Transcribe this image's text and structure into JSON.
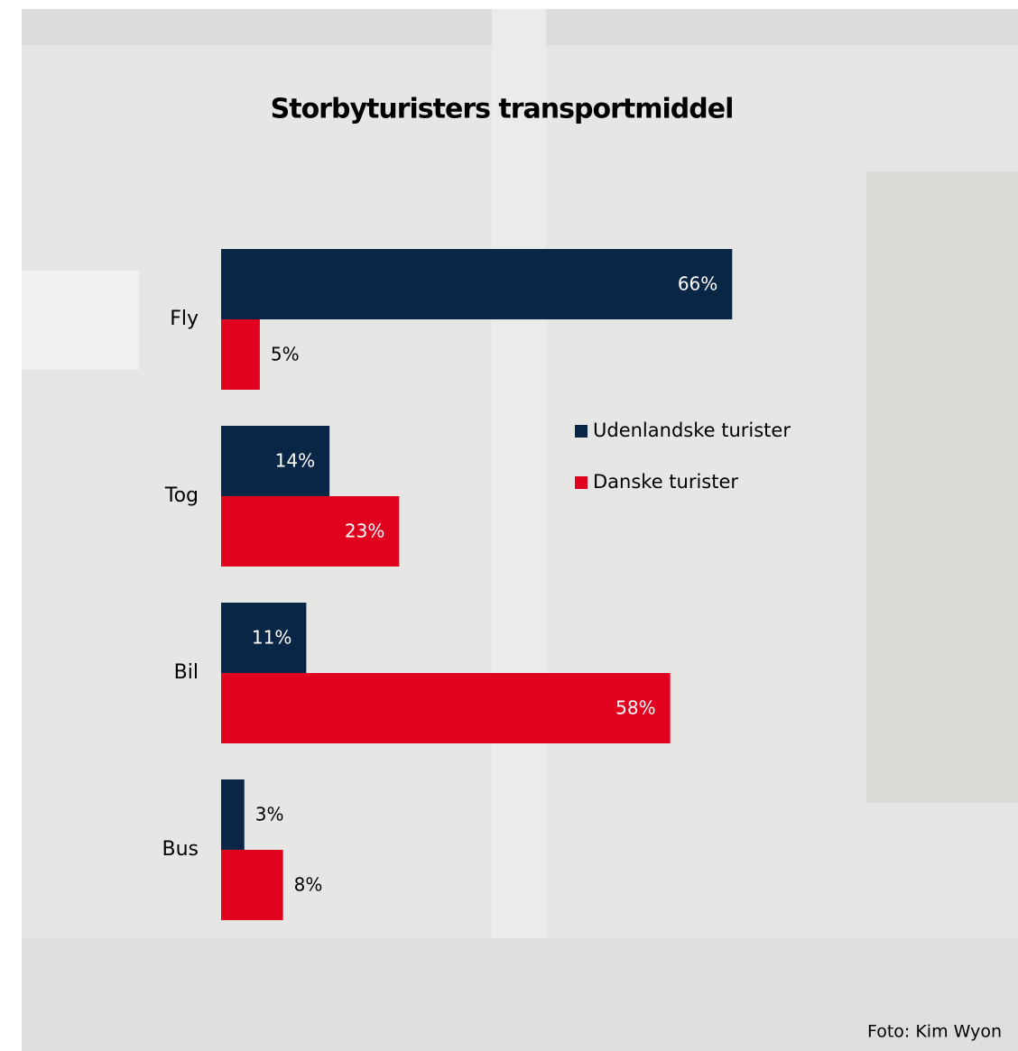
{
  "chart_data": {
    "type": "bar",
    "orientation": "horizontal",
    "title": "Storbyturisters transportmiddel",
    "categories": [
      "Fly",
      "Tog",
      "Bil",
      "Bus"
    ],
    "series": [
      {
        "name": "Udenlandske turister",
        "color": "#0a2646",
        "values": [
          66,
          14,
          11,
          3
        ],
        "value_labels": [
          "66%",
          "14%",
          "11%",
          "3%"
        ]
      },
      {
        "name": "Danske turister",
        "color": "#e0021f",
        "values": [
          5,
          23,
          58,
          8
        ],
        "value_labels": [
          "5%",
          "23%",
          "58%",
          "8%"
        ]
      }
    ],
    "credit": "Foto: Kim Wyon"
  }
}
